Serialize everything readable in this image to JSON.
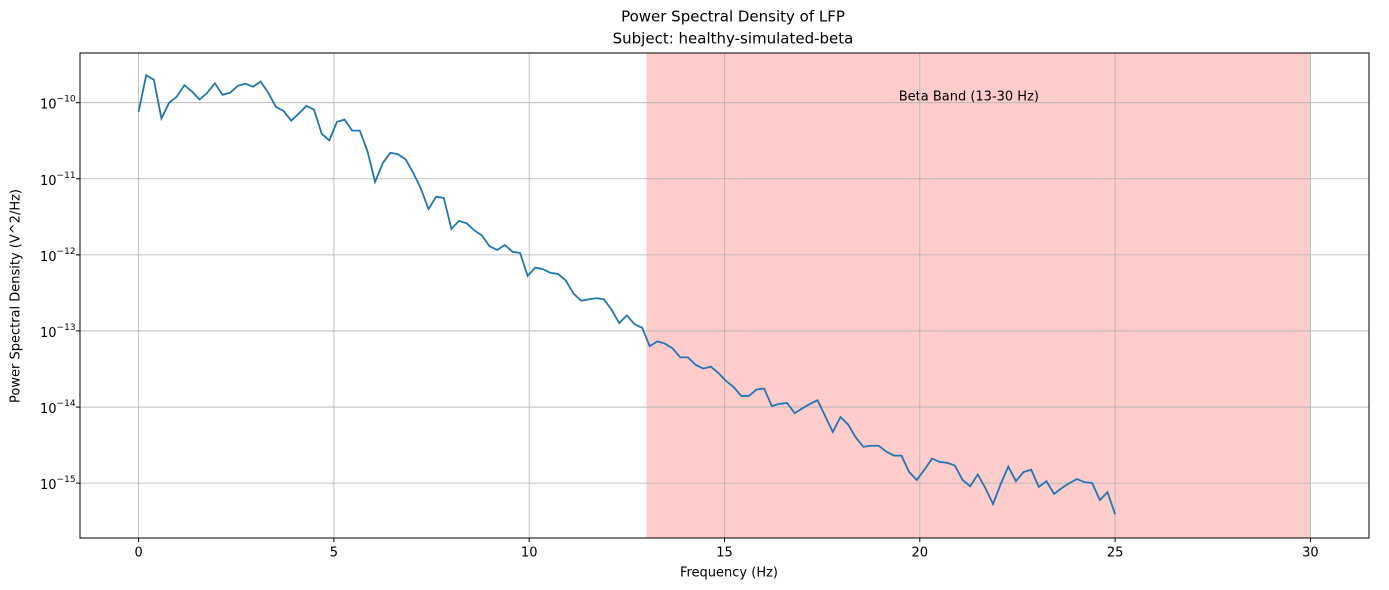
{
  "chart_data": {
    "type": "line",
    "title": "Power Spectral Density of LFP",
    "subtitle": "Subject: healthy-simulated-beta",
    "x_label": "Frequency (Hz)",
    "y_label": "Power Spectral Density (V^2/Hz)",
    "y_scale": "log",
    "grid": true,
    "xlim": [
      -1.5,
      31.5
    ],
    "xticks": [
      0,
      5,
      10,
      15,
      20,
      25,
      30
    ],
    "ylim": [
      1.9e-16,
      4.5e-10
    ],
    "yticks": [
      {
        "value": 1e-15,
        "label": "10",
        "exponent": "−15"
      },
      {
        "value": 1e-14,
        "label": "10",
        "exponent": "−14"
      },
      {
        "value": 1e-13,
        "label": "10",
        "exponent": "−13"
      },
      {
        "value": 1e-12,
        "label": "10",
        "exponent": "−12"
      },
      {
        "value": 1e-11,
        "label": "10",
        "exponent": "−11"
      },
      {
        "value": 1e-10,
        "label": "10",
        "exponent": "−10"
      }
    ],
    "span": {
      "start": 13,
      "end": 30,
      "color": "#ffcccc",
      "label": "Beta Band (13-30 Hz)"
    },
    "x": [
      0,
      0.195,
      0.391,
      0.586,
      0.781,
      0.977,
      1.172,
      1.367,
      1.563,
      1.758,
      1.953,
      2.148,
      2.344,
      2.539,
      2.734,
      2.93,
      3.125,
      3.32,
      3.516,
      3.711,
      3.906,
      4.102,
      4.297,
      4.492,
      4.688,
      4.883,
      5.078,
      5.273,
      5.469,
      5.664,
      5.859,
      6.055,
      6.25,
      6.445,
      6.641,
      6.836,
      7.031,
      7.227,
      7.422,
      7.617,
      7.813,
      8.008,
      8.203,
      8.398,
      8.594,
      8.789,
      8.984,
      9.18,
      9.375,
      9.57,
      9.766,
      9.961,
      10.156,
      10.352,
      10.547,
      10.742,
      10.938,
      11.133,
      11.328,
      11.523,
      11.719,
      11.914,
      12.109,
      12.305,
      12.5,
      12.695,
      12.891,
      13.086,
      13.281,
      13.477,
      13.672,
      13.867,
      14.063,
      14.258,
      14.453,
      14.648,
      14.844,
      15.039,
      15.234,
      15.43,
      15.625,
      15.82,
      16.016,
      16.211,
      16.406,
      16.602,
      16.797,
      16.992,
      17.188,
      17.383,
      17.578,
      17.773,
      17.969,
      18.164,
      18.359,
      18.555,
      18.75,
      18.945,
      19.141,
      19.336,
      19.531,
      19.727,
      19.922,
      20.117,
      20.313,
      20.508,
      20.703,
      20.898,
      21.094,
      21.289,
      21.484,
      21.68,
      21.875,
      22.07,
      22.266,
      22.461,
      22.656,
      22.852,
      23.047,
      23.242,
      23.438,
      23.633,
      23.828,
      24.023,
      24.219,
      24.414,
      24.609,
      24.805,
      25.0
    ],
    "series": [
      {
        "color": "#1f77b4",
        "values": [
          7.6e-11,
          2.3e-10,
          2e-10,
          6.2e-11,
          1e-10,
          1.2e-10,
          1.7e-10,
          1.4e-10,
          1.1e-10,
          1.35e-10,
          1.8e-10,
          1.27e-10,
          1.35e-10,
          1.67e-10,
          1.78e-10,
          1.62e-10,
          1.9e-10,
          1.35e-10,
          8.8e-11,
          7.8e-11,
          5.8e-11,
          7.2e-11,
          9.1e-11,
          8.1e-11,
          3.9e-11,
          3.2e-11,
          5.6e-11,
          6e-11,
          4.3e-11,
          4.3e-11,
          2.3e-11,
          9.1e-12,
          1.6e-11,
          2.2e-11,
          2.1e-11,
          1.8e-11,
          1.2e-11,
          7.4e-12,
          4e-12,
          5.8e-12,
          5.6e-12,
          2.2e-12,
          2.8e-12,
          2.6e-12,
          2.1e-12,
          1.8e-12,
          1.3e-12,
          1.16e-12,
          1.35e-12,
          1.1e-12,
          1.06e-12,
          5.3e-13,
          6.8e-13,
          6.5e-13,
          5.8e-13,
          5.6e-13,
          4.6e-13,
          3.1e-13,
          2.5e-13,
          2.6e-13,
          2.7e-13,
          2.6e-13,
          1.9e-13,
          1.27e-13,
          1.6e-13,
          1.23e-13,
          1.1e-13,
          6.3e-14,
          7.3e-14,
          6.8e-14,
          5.9e-14,
          4.5e-14,
          4.5e-14,
          3.6e-14,
          3.2e-14,
          3.4e-14,
          2.8e-14,
          2.2e-14,
          1.83e-14,
          1.4e-14,
          1.4e-14,
          1.7e-14,
          1.75e-14,
          1.03e-14,
          1.1e-14,
          1.13e-14,
          8.3e-15,
          9.6e-15,
          1.1e-14,
          1.23e-14,
          7.6e-15,
          4.7e-15,
          7.4e-15,
          5.9e-15,
          4e-15,
          3e-15,
          3.1e-15,
          3.1e-15,
          2.6e-15,
          2.3e-15,
          2.3e-15,
          1.4e-15,
          1.1e-15,
          1.5e-15,
          2.1e-15,
          1.9e-15,
          1.85e-15,
          1.7e-15,
          1.1e-15,
          9.1e-16,
          1.3e-15,
          8.6e-16,
          5.3e-16,
          9.7e-16,
          1.65e-15,
          1.06e-15,
          1.4e-15,
          1.5e-15,
          8.9e-16,
          1.06e-15,
          7.2e-16,
          8.6e-16,
          1e-15,
          1.13e-15,
          1.03e-15,
          1e-15,
          6e-16,
          7.6e-16,
          3.9e-16
        ]
      }
    ]
  }
}
